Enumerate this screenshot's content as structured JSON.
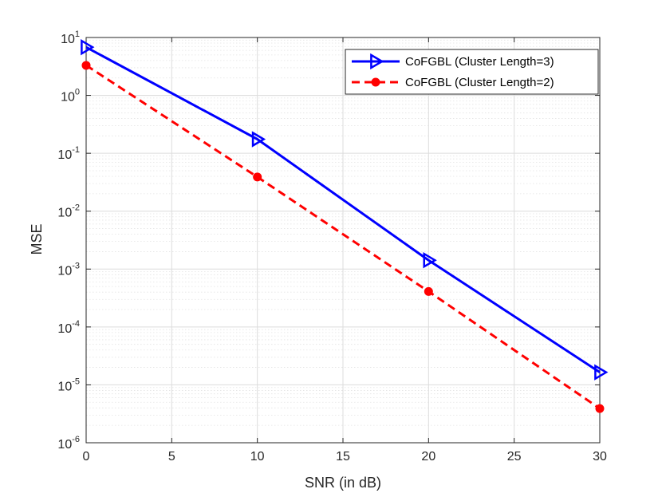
{
  "chart_data": {
    "type": "line",
    "xlabel": "SNR (in dB)",
    "ylabel": "MSE",
    "xlim": [
      0,
      30
    ],
    "ylim_exponents": [
      -6,
      1
    ],
    "yscale": "log",
    "x_ticks": [
      0,
      5,
      10,
      15,
      20,
      25,
      30
    ],
    "x_tick_labels": [
      "0",
      "5",
      "10",
      "15",
      "20",
      "25",
      "30"
    ],
    "y_tick_base": "10",
    "y_tick_exponents": [
      "-6",
      "-5",
      "-4",
      "-3",
      "-2",
      "-1",
      "0",
      "1"
    ],
    "grid": true,
    "minor_grid": true,
    "legend_position": "top-right",
    "series": [
      {
        "name": "CoFGBL (Cluster Length=3)",
        "color": "#0000ff",
        "line_style": "solid",
        "marker": "right-triangle",
        "x": [
          0,
          10,
          20,
          30
        ],
        "y": [
          6.8,
          0.175,
          0.00142,
          1.65e-05
        ]
      },
      {
        "name": "CoFGBL (Cluster Length=2)",
        "color": "#ff0000",
        "line_style": "dashed",
        "marker": "circle",
        "x": [
          0,
          10,
          20,
          30
        ],
        "y": [
          3.3,
          0.039,
          0.00041,
          3.9e-06
        ]
      }
    ]
  }
}
